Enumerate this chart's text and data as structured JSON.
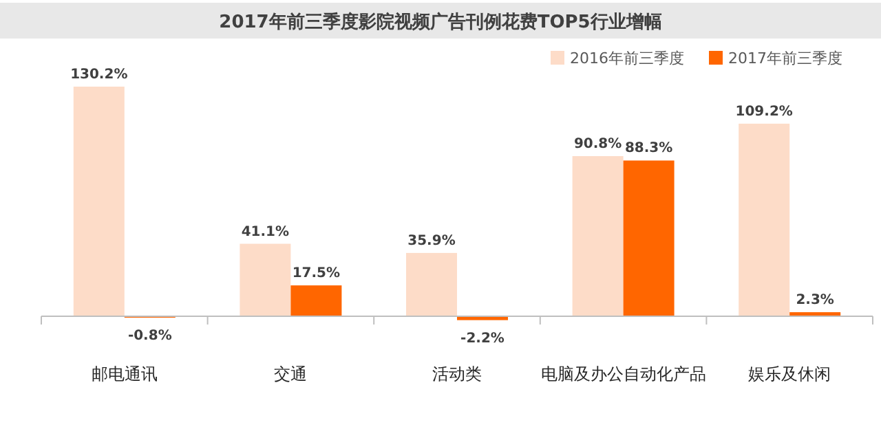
{
  "chart_data": {
    "type": "bar",
    "title": "2017年前三季度影院视频广告刊例花费TOP5行业增幅",
    "categories": [
      "邮电通讯",
      "交通",
      "活动类",
      "电脑及办公自动化产品",
      "娱乐及休闲"
    ],
    "series": [
      {
        "name": "2016年前三季度",
        "color": "#fddcc8",
        "values": [
          130.2,
          41.1,
          35.9,
          90.8,
          109.2
        ],
        "value_labels": [
          "130.2%",
          "41.1%",
          "35.9%",
          "90.8%",
          "109.2%"
        ]
      },
      {
        "name": "2017年前三季度",
        "color": "#ff6600",
        "values": [
          -0.8,
          17.5,
          -2.2,
          88.3,
          2.3
        ],
        "value_labels": [
          "-0.8%",
          "17.5%",
          "-2.2%",
          "88.3%",
          "2.3%"
        ]
      }
    ],
    "legend": "top right"
  }
}
